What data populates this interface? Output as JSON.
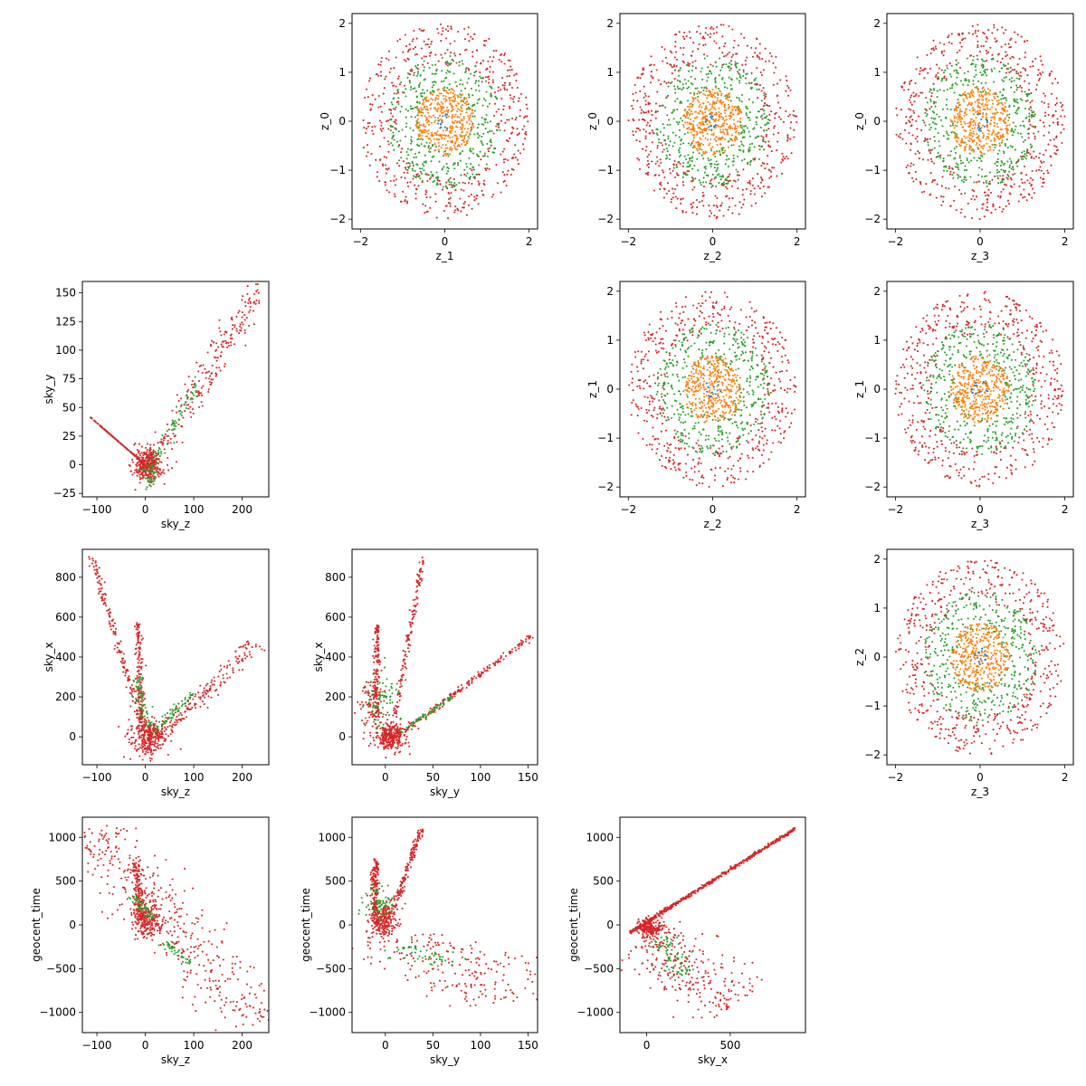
{
  "figure": {
    "colors": {
      "blue": "#1f77b4",
      "orange": "#ff7f0e",
      "green": "#2ca02c",
      "red": "#d62728"
    },
    "layer_order": [
      "red",
      "green",
      "orange",
      "blue"
    ]
  },
  "chart_data": [
    {
      "id": "z1-z0",
      "type": "scatter",
      "xlabel": "z_1",
      "ylabel": "z_0",
      "xlim": [
        -2.2,
        2.2
      ],
      "ylim": [
        -2.2,
        2.2
      ],
      "xticks": [
        -2,
        0,
        2
      ],
      "yticks": [
        -2,
        -1,
        0,
        1,
        2
      ],
      "series": [
        {
          "color": "red",
          "shape": "ring",
          "values": {
            "r_in": 1.15,
            "r_out": 2.0,
            "n": 520
          }
        },
        {
          "color": "green",
          "shape": "ring",
          "values": {
            "r_in": 0.55,
            "r_out": 1.35,
            "n": 420
          }
        },
        {
          "color": "orange",
          "shape": "disc",
          "values": {
            "r_out": 0.7,
            "n": 380
          }
        },
        {
          "color": "blue",
          "shape": "disc",
          "values": {
            "r_out": 0.2,
            "n": 12
          }
        }
      ]
    },
    {
      "id": "z2-z0",
      "type": "scatter",
      "xlabel": "z_2",
      "ylabel": "z_0",
      "xlim": [
        -2.2,
        2.2
      ],
      "ylim": [
        -2.2,
        2.2
      ],
      "xticks": [
        -2,
        0,
        2
      ],
      "yticks": [
        -2,
        -1,
        0,
        1,
        2
      ],
      "series": [
        {
          "color": "red",
          "shape": "ring",
          "values": {
            "r_in": 1.15,
            "r_out": 2.0,
            "n": 520
          }
        },
        {
          "color": "green",
          "shape": "ring",
          "values": {
            "r_in": 0.55,
            "r_out": 1.35,
            "n": 420
          }
        },
        {
          "color": "orange",
          "shape": "disc",
          "values": {
            "r_out": 0.7,
            "n": 380
          }
        },
        {
          "color": "blue",
          "shape": "disc",
          "values": {
            "r_out": 0.2,
            "n": 12
          }
        }
      ]
    },
    {
      "id": "z3-z0",
      "type": "scatter",
      "xlabel": "z_3",
      "ylabel": "z_0",
      "xlim": [
        -2.2,
        2.2
      ],
      "ylim": [
        -2.2,
        2.2
      ],
      "xticks": [
        -2,
        0,
        2
      ],
      "yticks": [
        -2,
        -1,
        0,
        1,
        2
      ],
      "series": [
        {
          "color": "red",
          "shape": "ring",
          "values": {
            "r_in": 1.15,
            "r_out": 2.0,
            "n": 520
          }
        },
        {
          "color": "green",
          "shape": "ring",
          "values": {
            "r_in": 0.55,
            "r_out": 1.35,
            "n": 420
          }
        },
        {
          "color": "orange",
          "shape": "disc",
          "values": {
            "r_out": 0.7,
            "n": 380
          }
        },
        {
          "color": "blue",
          "shape": "disc",
          "values": {
            "r_out": 0.2,
            "n": 12
          }
        }
      ]
    },
    {
      "id": "skyz-skyy",
      "type": "scatter",
      "xlabel": "sky_z",
      "ylabel": "sky_y",
      "xlim": [
        -130,
        255
      ],
      "ylim": [
        -28,
        160
      ],
      "xticks": [
        -100,
        0,
        100,
        200
      ],
      "yticks": [
        -25,
        0,
        25,
        50,
        75,
        100,
        125,
        150
      ],
      "series": [
        {
          "color": "red",
          "shape": "blob",
          "values": {
            "cx": 5,
            "cy": 0,
            "sx": 14,
            "sy": 7,
            "n": 350
          }
        },
        {
          "color": "red",
          "shape": "segment",
          "values": {
            "from": [
              0,
              0
            ],
            "to": [
              -115,
              42
            ],
            "w": 3,
            "n": 150
          }
        },
        {
          "color": "red",
          "shape": "segment",
          "values": {
            "from": [
              15,
              5
            ],
            "to": [
              235,
              150
            ],
            "w": 11,
            "n": 230
          }
        },
        {
          "color": "green",
          "shape": "segment",
          "values": {
            "from": [
              10,
              0
            ],
            "to": [
              110,
              72
            ],
            "w": 5,
            "n": 70
          }
        },
        {
          "color": "green",
          "shape": "blob",
          "values": {
            "cx": 8,
            "cy": -8,
            "sx": 8,
            "sy": 6,
            "n": 40
          }
        }
      ]
    },
    {
      "id": "z2-z1",
      "type": "scatter",
      "xlabel": "z_2",
      "ylabel": "z_1",
      "xlim": [
        -2.2,
        2.2
      ],
      "ylim": [
        -2.2,
        2.2
      ],
      "xticks": [
        -2,
        0,
        2
      ],
      "yticks": [
        -2,
        -1,
        0,
        1,
        2
      ],
      "series": [
        {
          "color": "red",
          "shape": "ring",
          "values": {
            "r_in": 1.15,
            "r_out": 2.0,
            "n": 520
          }
        },
        {
          "color": "green",
          "shape": "ring",
          "values": {
            "r_in": 0.55,
            "r_out": 1.35,
            "n": 420
          }
        },
        {
          "color": "orange",
          "shape": "disc",
          "values": {
            "r_out": 0.7,
            "n": 380
          }
        },
        {
          "color": "blue",
          "shape": "disc",
          "values": {
            "r_out": 0.2,
            "n": 12
          }
        }
      ]
    },
    {
      "id": "z3-z1",
      "type": "scatter",
      "xlabel": "z_3",
      "ylabel": "z_1",
      "xlim": [
        -2.2,
        2.2
      ],
      "ylim": [
        -2.2,
        2.2
      ],
      "xticks": [
        -2,
        0,
        2
      ],
      "yticks": [
        -2,
        -1,
        0,
        1,
        2
      ],
      "series": [
        {
          "color": "red",
          "shape": "ring",
          "values": {
            "r_in": 1.15,
            "r_out": 2.0,
            "n": 520
          }
        },
        {
          "color": "green",
          "shape": "ring",
          "values": {
            "r_in": 0.55,
            "r_out": 1.35,
            "n": 420
          }
        },
        {
          "color": "orange",
          "shape": "disc",
          "values": {
            "r_out": 0.7,
            "n": 380
          }
        },
        {
          "color": "blue",
          "shape": "disc",
          "values": {
            "r_out": 0.2,
            "n": 12
          }
        }
      ]
    },
    {
      "id": "skyz-skyx",
      "type": "scatter",
      "xlabel": "sky_z",
      "ylabel": "sky_x",
      "xlim": [
        -130,
        255
      ],
      "ylim": [
        -140,
        940
      ],
      "xticks": [
        -100,
        0,
        100,
        200
      ],
      "yticks": [
        0,
        200,
        400,
        600,
        800
      ],
      "series": [
        {
          "color": "red",
          "shape": "blob",
          "values": {
            "cx": 5,
            "cy": 0,
            "sx": 18,
            "sy": 45,
            "n": 300
          }
        },
        {
          "color": "red",
          "shape": "segment",
          "values": {
            "from": [
              -5,
              50
            ],
            "to": [
              -110,
              900
            ],
            "w": 14,
            "n": 160
          }
        },
        {
          "color": "red",
          "shape": "segment",
          "values": {
            "from": [
              -8,
              80
            ],
            "to": [
              -15,
              570
            ],
            "w": 10,
            "n": 140
          }
        },
        {
          "color": "red",
          "shape": "segment",
          "values": {
            "from": [
              25,
              0
            ],
            "to": [
              230,
              470
            ],
            "w": 24,
            "n": 180
          }
        },
        {
          "color": "green",
          "shape": "segment",
          "values": {
            "from": [
              -20,
              300
            ],
            "to": [
              5,
              50
            ],
            "w": 10,
            "n": 60
          }
        },
        {
          "color": "green",
          "shape": "segment",
          "values": {
            "from": [
              20,
              30
            ],
            "to": [
              100,
              230
            ],
            "w": 12,
            "n": 60
          }
        }
      ]
    },
    {
      "id": "skyy-skyx",
      "type": "scatter",
      "xlabel": "sky_y",
      "ylabel": "sky_x",
      "xlim": [
        -35,
        160
      ],
      "ylim": [
        -140,
        940
      ],
      "xticks": [
        0,
        50,
        100,
        150
      ],
      "yticks": [
        0,
        200,
        400,
        600,
        800
      ],
      "series": [
        {
          "color": "red",
          "shape": "blob",
          "values": {
            "cx": 5,
            "cy": 0,
            "sx": 8,
            "sy": 35,
            "n": 300
          }
        },
        {
          "color": "red",
          "shape": "segment",
          "values": {
            "from": [
              -10,
              100
            ],
            "to": [
              -8,
              560
            ],
            "w": 5,
            "n": 150
          }
        },
        {
          "color": "red",
          "shape": "segment",
          "values": {
            "from": [
              10,
              100
            ],
            "to": [
              40,
              900
            ],
            "w": 4,
            "n": 140
          }
        },
        {
          "color": "red",
          "shape": "segment",
          "values": {
            "from": [
              15,
              10
            ],
            "to": [
              155,
              510
            ],
            "w": 5,
            "n": 180
          }
        },
        {
          "color": "red",
          "shape": "blob",
          "values": {
            "cx": -15,
            "cy": 150,
            "sx": 7,
            "sy": 80,
            "n": 80
          }
        },
        {
          "color": "green",
          "shape": "blob",
          "values": {
            "cx": -5,
            "cy": 180,
            "sx": 8,
            "sy": 70,
            "n": 70
          }
        },
        {
          "color": "green",
          "shape": "segment",
          "values": {
            "from": [
              15,
              20
            ],
            "to": [
              70,
              200
            ],
            "w": 4,
            "n": 60
          }
        }
      ]
    },
    {
      "id": "z3-z2",
      "type": "scatter",
      "xlabel": "z_3",
      "ylabel": "z_2",
      "xlim": [
        -2.2,
        2.2
      ],
      "ylim": [
        -2.2,
        2.2
      ],
      "xticks": [
        -2,
        0,
        2
      ],
      "yticks": [
        -2,
        -1,
        0,
        1,
        2
      ],
      "series": [
        {
          "color": "red",
          "shape": "ring",
          "values": {
            "r_in": 1.15,
            "r_out": 2.0,
            "n": 520
          }
        },
        {
          "color": "green",
          "shape": "ring",
          "values": {
            "r_in": 0.55,
            "r_out": 1.35,
            "n": 420
          }
        },
        {
          "color": "orange",
          "shape": "disc",
          "values": {
            "r_out": 0.7,
            "n": 380
          }
        },
        {
          "color": "blue",
          "shape": "disc",
          "values": {
            "r_out": 0.2,
            "n": 12
          }
        }
      ]
    },
    {
      "id": "skyz-geocent",
      "type": "scatter",
      "xlabel": "sky_z",
      "ylabel": "geocent_time",
      "xlim": [
        -130,
        255
      ],
      "ylim": [
        -1230,
        1230
      ],
      "xticks": [
        -100,
        0,
        100,
        200
      ],
      "yticks": [
        -1000,
        -500,
        0,
        500,
        1000
      ],
      "series": [
        {
          "color": "red",
          "shape": "segment",
          "values": {
            "from": [
              -115,
              1100
            ],
            "to": [
              235,
              -1130
            ],
            "w": 55,
            "n": 420
          }
        },
        {
          "color": "red",
          "shape": "segment",
          "values": {
            "from": [
              -8,
              50
            ],
            "to": [
              -20,
              720
            ],
            "w": 14,
            "n": 150
          }
        },
        {
          "color": "red",
          "shape": "blob",
          "values": {
            "cx": 5,
            "cy": 50,
            "sx": 14,
            "sy": 90,
            "n": 200
          }
        },
        {
          "color": "green",
          "shape": "segment",
          "values": {
            "from": [
              -25,
              330
            ],
            "to": [
              10,
              80
            ],
            "w": 10,
            "n": 50
          }
        },
        {
          "color": "green",
          "shape": "segment",
          "values": {
            "from": [
              40,
              -200
            ],
            "to": [
              100,
              -470
            ],
            "w": 10,
            "n": 40
          }
        }
      ]
    },
    {
      "id": "skyy-geocent",
      "type": "scatter",
      "xlabel": "sky_y",
      "ylabel": "geocent_time",
      "xlim": [
        -35,
        160
      ],
      "ylim": [
        -1230,
        1230
      ],
      "xticks": [
        0,
        50,
        100,
        150
      ],
      "yticks": [
        -1000,
        -500,
        0,
        500,
        1000
      ],
      "series": [
        {
          "color": "red",
          "shape": "blob",
          "values": {
            "cx": -2,
            "cy": 50,
            "sx": 7,
            "sy": 90,
            "n": 250
          }
        },
        {
          "color": "red",
          "shape": "segment",
          "values": {
            "from": [
              -12,
              100
            ],
            "to": [
              -10,
              750
            ],
            "w": 6,
            "n": 160
          }
        },
        {
          "color": "red",
          "shape": "segment",
          "values": {
            "from": [
              8,
              150
            ],
            "to": [
              38,
              1100
            ],
            "w": 5,
            "n": 150
          }
        },
        {
          "color": "red",
          "shape": "segment",
          "values": {
            "from": [
              15,
              -100
            ],
            "to": [
              150,
              -870
            ],
            "w": 70,
            "n": 240
          }
        },
        {
          "color": "green",
          "shape": "blob",
          "values": {
            "cx": -5,
            "cy": 250,
            "sx": 8,
            "sy": 90,
            "n": 70
          }
        },
        {
          "color": "green",
          "shape": "segment",
          "values": {
            "from": [
              20,
              -250
            ],
            "to": [
              60,
              -470
            ],
            "w": 25,
            "n": 50
          }
        }
      ]
    },
    {
      "id": "skyx-geocent",
      "type": "scatter",
      "xlabel": "sky_x",
      "ylabel": "geocent_time",
      "xlim": [
        -160,
        950
      ],
      "ylim": [
        -1230,
        1230
      ],
      "xticks": [
        0,
        500
      ],
      "yticks": [
        -1000,
        -500,
        0,
        500,
        1000
      ],
      "series": [
        {
          "color": "red",
          "shape": "segment",
          "values": {
            "from": [
              -100,
              -90
            ],
            "to": [
              890,
              1100
            ],
            "w": 10,
            "n": 500
          }
        },
        {
          "color": "red",
          "shape": "segment",
          "values": {
            "from": [
              0,
              -100
            ],
            "to": [
              520,
              -920
            ],
            "w": 160,
            "n": 260
          }
        },
        {
          "color": "red",
          "shape": "blob",
          "values": {
            "cx": 20,
            "cy": -30,
            "sx": 40,
            "sy": 50,
            "n": 180
          }
        },
        {
          "color": "green",
          "shape": "segment",
          "values": {
            "from": [
              80,
              -150
            ],
            "to": [
              230,
              -580
            ],
            "w": 60,
            "n": 80
          }
        }
      ]
    }
  ]
}
